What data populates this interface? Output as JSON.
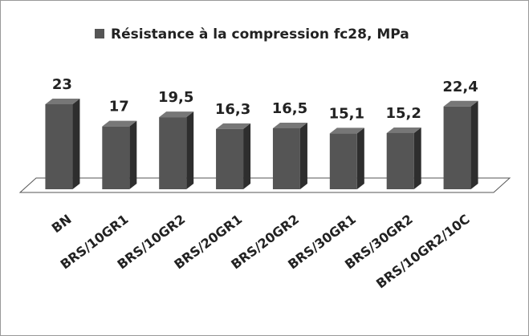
{
  "chart_data": {
    "type": "bar3d",
    "categories": [
      "BN",
      "BRS/10GR1",
      "BRS/10GR2",
      "BRS/20GR1",
      "BRS/20GR2",
      "BRS/30GR1",
      "BRS/30GR2",
      "BRS/10GR2/10C"
    ],
    "series": [
      {
        "name": "Résistance à la compression fc28, MPa",
        "color": "#555555",
        "values": [
          23,
          17,
          19.5,
          16.3,
          16.5,
          15.1,
          15.2,
          22.4
        ],
        "value_labels": [
          "23",
          "17",
          "19,5",
          "16,3",
          "16,5",
          "15,1",
          "15,2",
          "22,4"
        ]
      }
    ]
  }
}
